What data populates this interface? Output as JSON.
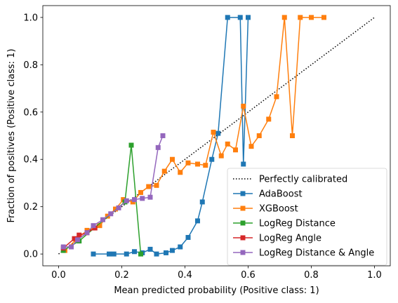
{
  "chart_data": {
    "type": "line",
    "title": "",
    "xlabel": "Mean predicted probability (Positive class: 1)",
    "ylabel": "Fraction of positives (Positive class: 1)",
    "xlim": [
      -0.05,
      1.05
    ],
    "ylim": [
      -0.05,
      1.05
    ],
    "xticks": [
      "0.0",
      "0.2",
      "0.4",
      "0.6",
      "0.8",
      "1.0"
    ],
    "yticks": [
      "0.0",
      "0.2",
      "0.4",
      "0.6",
      "0.8",
      "1.0"
    ],
    "grid": false,
    "legend_position": "lower right",
    "reference": {
      "name": "Perfectly calibrated",
      "style": "dotted",
      "color": "#000000",
      "x": [
        0.0,
        1.0
      ],
      "y": [
        0.0,
        1.0
      ]
    },
    "series": [
      {
        "name": "AdaBoost",
        "color": "#1f77b4",
        "marker": "square",
        "x": [
          0.11,
          0.16,
          0.175,
          0.215,
          0.24,
          0.265,
          0.29,
          0.31,
          0.34,
          0.36,
          0.385,
          0.41,
          0.44,
          0.455,
          0.485,
          0.505,
          0.535,
          0.575,
          0.585,
          0.6
        ],
        "y": [
          0.0,
          0.0,
          0.0,
          0.0,
          0.01,
          0.005,
          0.02,
          0.0,
          0.005,
          0.015,
          0.03,
          0.07,
          0.14,
          0.22,
          0.4,
          0.51,
          1.0,
          1.0,
          0.38,
          1.0
        ]
      },
      {
        "name": "XGBoost",
        "color": "#ff7f0e",
        "marker": "square",
        "x": [
          0.02,
          0.055,
          0.09,
          0.11,
          0.13,
          0.155,
          0.18,
          0.205,
          0.235,
          0.26,
          0.285,
          0.31,
          0.335,
          0.36,
          0.385,
          0.41,
          0.44,
          0.465,
          0.49,
          0.515,
          0.535,
          0.56,
          0.585,
          0.61,
          0.635,
          0.665,
          0.69,
          0.715,
          0.74,
          0.765,
          0.8,
          0.84
        ],
        "y": [
          0.015,
          0.06,
          0.1,
          0.11,
          0.12,
          0.16,
          0.19,
          0.23,
          0.22,
          0.26,
          0.285,
          0.29,
          0.35,
          0.4,
          0.345,
          0.385,
          0.38,
          0.375,
          0.515,
          0.415,
          0.465,
          0.44,
          0.625,
          0.455,
          0.5,
          0.57,
          0.665,
          1.0,
          0.5,
          1.0,
          1.0,
          1.0
        ]
      },
      {
        "name": "LogReg Distance",
        "color": "#2ca02c",
        "marker": "square",
        "x": [
          0.015,
          0.065,
          0.21,
          0.23,
          0.26
        ],
        "y": [
          0.015,
          0.055,
          0.22,
          0.46,
          0.0
        ]
      },
      {
        "name": "LogReg Angle",
        "color": "#d62728",
        "marker": "square",
        "x": [
          0.015,
          0.05,
          0.065,
          0.09,
          0.115
        ],
        "y": [
          0.025,
          0.065,
          0.08,
          0.09,
          0.11
        ]
      },
      {
        "name": "LogReg Distance & Angle",
        "color": "#9467bd",
        "marker": "square",
        "x": [
          0.015,
          0.04,
          0.06,
          0.09,
          0.11,
          0.14,
          0.165,
          0.19,
          0.215,
          0.24,
          0.265,
          0.29,
          0.315,
          0.33
        ],
        "y": [
          0.03,
          0.03,
          0.06,
          0.09,
          0.12,
          0.145,
          0.17,
          0.195,
          0.225,
          0.23,
          0.235,
          0.24,
          0.45,
          0.5
        ]
      }
    ]
  }
}
